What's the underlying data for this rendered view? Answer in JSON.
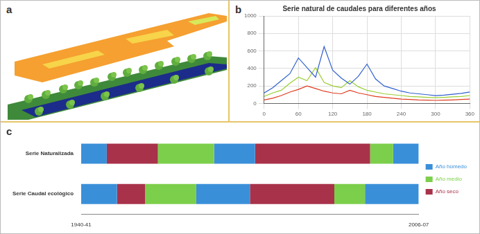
{
  "panel_labels": [
    "a",
    "b",
    "c"
  ],
  "chart_data": [
    {
      "type": "line",
      "title": "Serie natural de caudales para diferentes años",
      "x": [
        0,
        15,
        30,
        45,
        60,
        75,
        90,
        105,
        120,
        135,
        150,
        165,
        180,
        195,
        210,
        225,
        240,
        255,
        270,
        285,
        300,
        315,
        330,
        345,
        360
      ],
      "series": [
        {
          "color": "#2f5fd0",
          "values": [
            120,
            180,
            260,
            340,
            520,
            410,
            300,
            650,
            380,
            290,
            220,
            310,
            450,
            280,
            200,
            170,
            140,
            120,
            110,
            100,
            90,
            95,
            105,
            115,
            130
          ]
        },
        {
          "color": "#9acd32",
          "values": [
            80,
            120,
            150,
            230,
            300,
            260,
            410,
            240,
            200,
            180,
            260,
            190,
            150,
            130,
            110,
            100,
            90,
            80,
            75,
            70,
            65,
            70,
            75,
            80,
            90
          ]
        },
        {
          "color": "#e03a1e",
          "values": [
            40,
            60,
            90,
            130,
            160,
            200,
            170,
            140,
            120,
            110,
            150,
            120,
            100,
            80,
            70,
            60,
            50,
            45,
            40,
            38,
            35,
            37,
            40,
            45,
            50
          ]
        }
      ],
      "xlim": [
        0,
        360
      ],
      "xticks": [
        0,
        60,
        120,
        180,
        240,
        300,
        360
      ],
      "ylim": [
        0,
        1000
      ],
      "yticks": [
        0,
        200,
        400,
        600,
        800,
        1000
      ],
      "grid": true
    },
    {
      "type": "bar",
      "orientation": "horizontal",
      "stacked": true,
      "categories": [
        "Serie Naturalizada",
        "Serie Caudal ecológico"
      ],
      "rows": [
        {
          "values": [
            5,
            10,
            11,
            8,
            22.5,
            4.5,
            5
          ],
          "classes": [
            "Año húmedo",
            "Año seco",
            "Año medio",
            "Año húmedo",
            "Año seco",
            "Año medio",
            "Año húmedo"
          ]
        },
        {
          "values": [
            7,
            5.5,
            10,
            10.5,
            16.5,
            6,
            10.5
          ],
          "classes": [
            "Año húmedo",
            "Año seco",
            "Año medio",
            "Año húmedo",
            "Año seco",
            "Año medio",
            "Año húmedo"
          ]
        }
      ],
      "classes": [
        {
          "name": "Año húmedo",
          "color": "#3a8fd9"
        },
        {
          "name": "Año medio",
          "color": "#7ccf4a"
        },
        {
          "name": "Año seco",
          "color": "#a8324a"
        }
      ],
      "xlim": [
        0,
        66
      ],
      "xticks": [
        {
          "value": 0,
          "label": "1940-41"
        },
        {
          "value": 66,
          "label": "2006-07"
        }
      ],
      "legend": "right",
      "grid": false
    }
  ]
}
